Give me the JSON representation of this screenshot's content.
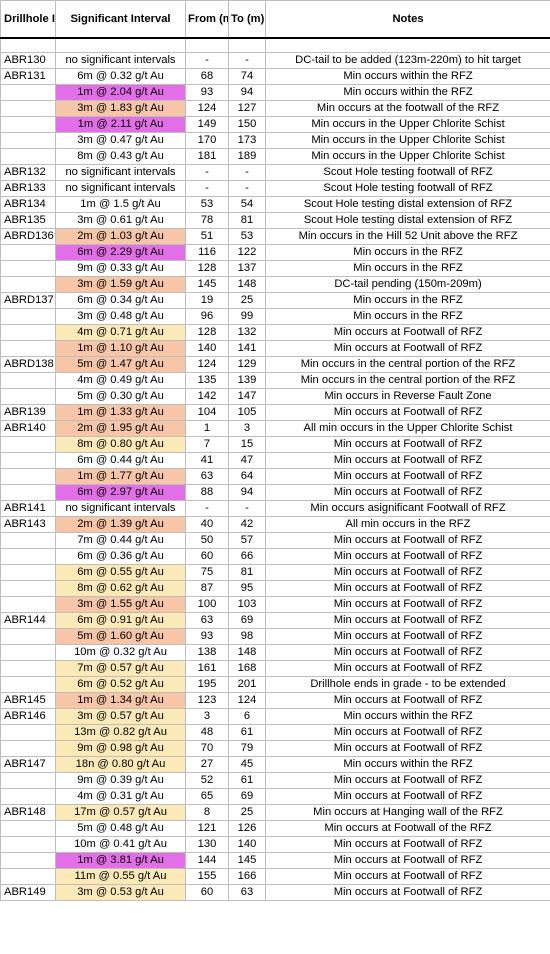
{
  "headers": {
    "drillhole": "Drillhole ID",
    "interval": "Significant Interval",
    "from": "From (m)",
    "to": "To (m)",
    "notes": "Notes"
  },
  "rows": [
    {
      "id": "ABR130",
      "interval": "no significant intervals",
      "from": "-",
      "to": "-",
      "notes": "DC-tail to be added (123m-220m) to hit target",
      "hl": ""
    },
    {
      "id": "ABR131",
      "interval": "6m @ 0.32 g/t Au",
      "from": "68",
      "to": "74",
      "notes": "Min occurs within the RFZ",
      "hl": ""
    },
    {
      "id": "",
      "interval": "1m @ 2.04 g/t Au",
      "from": "93",
      "to": "94",
      "notes": "Min occurs within the RFZ",
      "hl": "magenta"
    },
    {
      "id": "",
      "interval": "3m @ 1.83 g/t Au",
      "from": "124",
      "to": "127",
      "notes": "Min occurs at the footwall of the RFZ",
      "hl": "salmon"
    },
    {
      "id": "",
      "interval": "1m @ 2.11 g/t Au",
      "from": "149",
      "to": "150",
      "notes": "Min occurs in the Upper Chlorite Schist",
      "hl": "magenta"
    },
    {
      "id": "",
      "interval": "3m @ 0.47 g/t Au",
      "from": "170",
      "to": "173",
      "notes": "Min occurs in the Upper Chlorite Schist",
      "hl": ""
    },
    {
      "id": "",
      "interval": "8m @ 0.43 g/t Au",
      "from": "181",
      "to": "189",
      "notes": "Min occurs in the Upper Chlorite Schist",
      "hl": ""
    },
    {
      "id": "ABR132",
      "interval": "no significant intervals",
      "from": "-",
      "to": "-",
      "notes": "Scout Hole testing footwall of RFZ",
      "hl": ""
    },
    {
      "id": "ABR133",
      "interval": "no significant intervals",
      "from": "-",
      "to": "-",
      "notes": "Scout Hole testing footwall of RFZ",
      "hl": ""
    },
    {
      "id": "ABR134",
      "interval": "1m @ 1.5 g/t Au",
      "from": "53",
      "to": "54",
      "notes": "Scout Hole testing distal extension of RFZ",
      "hl": ""
    },
    {
      "id": "ABR135",
      "interval": "3m @ 0.61 g/t Au",
      "from": "78",
      "to": "81",
      "notes": "Scout Hole testing distal extension of RFZ",
      "hl": ""
    },
    {
      "id": "ABRD136",
      "interval": "2m @ 1.03 g/t Au",
      "from": "51",
      "to": "53",
      "notes": "Min occurs in the Hill 52 Unit above the RFZ",
      "hl": "salmon"
    },
    {
      "id": "",
      "interval": "6m @ 2.29 g/t Au",
      "from": "116",
      "to": "122",
      "notes": "Min occurs in the RFZ",
      "hl": "magenta"
    },
    {
      "id": "",
      "interval": "9m @ 0.33 g/t Au",
      "from": "128",
      "to": "137",
      "notes": "Min occurs in the RFZ",
      "hl": ""
    },
    {
      "id": "",
      "interval": "3m @ 1.59 g/t Au",
      "from": "145",
      "to": "148",
      "notes": "DC-tail pending (150m-209m)",
      "hl": "salmon"
    },
    {
      "id": "ABRD137",
      "interval": "6m @ 0.34 g/t Au",
      "from": "19",
      "to": "25",
      "notes": "Min occurs in the RFZ",
      "hl": ""
    },
    {
      "id": "",
      "interval": "3m @ 0.48 g/t Au",
      "from": "96",
      "to": "99",
      "notes": "Min occurs in the RFZ",
      "hl": ""
    },
    {
      "id": "",
      "interval": "4m @ 0.71 g/t Au",
      "from": "128",
      "to": "132",
      "notes": "Min occurs at Footwall of RFZ",
      "hl": "yellow"
    },
    {
      "id": "",
      "interval": "1m @ 1.10 g/t Au",
      "from": "140",
      "to": "141",
      "notes": "Min occurs at Footwall of RFZ",
      "hl": "salmon"
    },
    {
      "id": "ABRD138",
      "interval": "5m @ 1.47 g/t Au",
      "from": "124",
      "to": "129",
      "notes": "Min occurs in the central portion of the RFZ",
      "hl": "salmon"
    },
    {
      "id": "",
      "interval": "4m @ 0.49 g/t Au",
      "from": "135",
      "to": "139",
      "notes": "Min occurs in the central portion of the RFZ",
      "hl": ""
    },
    {
      "id": "",
      "interval": "5m @ 0.30 g/t Au",
      "from": "142",
      "to": "147",
      "notes": "Min occurs in Reverse Fault Zone",
      "hl": ""
    },
    {
      "id": "ABR139",
      "interval": "1m @ 1.33 g/t Au",
      "from": "104",
      "to": "105",
      "notes": "Min occurs at Footwall of RFZ",
      "hl": "salmon"
    },
    {
      "id": "ABR140",
      "interval": "2m @ 1.95 g/t Au",
      "from": "1",
      "to": "3",
      "notes": "All min occurs in the Upper Chlorite Schist",
      "hl": "salmon"
    },
    {
      "id": "",
      "interval": "8m @ 0.80 g/t Au",
      "from": "7",
      "to": "15",
      "notes": "Min occurs at Footwall of RFZ",
      "hl": "yellow"
    },
    {
      "id": "",
      "interval": "6m @ 0.44 g/t Au",
      "from": "41",
      "to": "47",
      "notes": "Min occurs at Footwall of RFZ",
      "hl": ""
    },
    {
      "id": "",
      "interval": "1m @ 1.77 g/t Au",
      "from": "63",
      "to": "64",
      "notes": "Min occurs at Footwall of RFZ",
      "hl": "salmon"
    },
    {
      "id": "",
      "interval": "6m @ 2.97 g/t Au",
      "from": "88",
      "to": "94",
      "notes": "Min occurs at Footwall of RFZ",
      "hl": "magenta"
    },
    {
      "id": "ABR141",
      "interval": "no significant intervals",
      "from": "-",
      "to": "-",
      "notes": "Min occurs asignificant Footwall of RFZ",
      "hl": ""
    },
    {
      "id": "ABR143",
      "interval": "2m @ 1.39 g/t Au",
      "from": "40",
      "to": "42",
      "notes": "All min occurs in the RFZ",
      "hl": "salmon"
    },
    {
      "id": "",
      "interval": "7m @ 0.44 g/t Au",
      "from": "50",
      "to": "57",
      "notes": "Min occurs at Footwall of RFZ",
      "hl": ""
    },
    {
      "id": "",
      "interval": "6m @ 0.36 g/t Au",
      "from": "60",
      "to": "66",
      "notes": "Min occurs at Footwall of RFZ",
      "hl": ""
    },
    {
      "id": "",
      "interval": "6m @ 0.55 g/t Au",
      "from": "75",
      "to": "81",
      "notes": "Min occurs at Footwall of RFZ",
      "hl": "yellow"
    },
    {
      "id": "",
      "interval": "8m @ 0.62 g/t Au",
      "from": "87",
      "to": "95",
      "notes": "Min occurs at Footwall of RFZ",
      "hl": "yellow"
    },
    {
      "id": "",
      "interval": "3m @ 1.55 g/t Au",
      "from": "100",
      "to": "103",
      "notes": "Min occurs at Footwall of RFZ",
      "hl": "salmon"
    },
    {
      "id": "ABR144",
      "interval": "6m @ 0.91 g/t Au",
      "from": "63",
      "to": "69",
      "notes": "Min occurs at Footwall of RFZ",
      "hl": "yellow"
    },
    {
      "id": "",
      "interval": "5m @ 1.60 g/t Au",
      "from": "93",
      "to": "98",
      "notes": "Min occurs at Footwall of RFZ",
      "hl": "salmon"
    },
    {
      "id": "",
      "interval": "10m @ 0.32 g/t Au",
      "from": "138",
      "to": "148",
      "notes": "Min occurs at Footwall of RFZ",
      "hl": ""
    },
    {
      "id": "",
      "interval": "7m @ 0.57 g/t Au",
      "from": "161",
      "to": "168",
      "notes": "Min occurs at Footwall of RFZ",
      "hl": "yellow"
    },
    {
      "id": "",
      "interval": "6m @ 0.52 g/t Au",
      "from": "195",
      "to": "201",
      "notes": "Drillhole ends in grade - to be extended",
      "hl": "yellow"
    },
    {
      "id": "ABR145",
      "interval": "1m @ 1.34 g/t Au",
      "from": "123",
      "to": "124",
      "notes": "Min occurs at Footwall of RFZ",
      "hl": "salmon"
    },
    {
      "id": "ABR146",
      "interval": "3m @ 0.57 g/t Au",
      "from": "3",
      "to": "6",
      "notes": "Min occurs within the RFZ",
      "hl": "yellow"
    },
    {
      "id": "",
      "interval": "13m @ 0.82 g/t Au",
      "from": "48",
      "to": "61",
      "notes": "Min occurs at Footwall of RFZ",
      "hl": "yellow"
    },
    {
      "id": "",
      "interval": "9m @ 0.98 g/t Au",
      "from": "70",
      "to": "79",
      "notes": "Min occurs at Footwall of RFZ",
      "hl": "yellow"
    },
    {
      "id": "ABR147",
      "interval": "18n @ 0.80 g/t Au",
      "from": "27",
      "to": "45",
      "notes": "Min occurs within the RFZ",
      "hl": "yellow"
    },
    {
      "id": "",
      "interval": "9m @ 0.39 g/t Au",
      "from": "52",
      "to": "61",
      "notes": "Min occurs at Footwall of RFZ",
      "hl": ""
    },
    {
      "id": "",
      "interval": "4m @ 0.31 g/t Au",
      "from": "65",
      "to": "69",
      "notes": "Min occurs at Footwall of RFZ",
      "hl": ""
    },
    {
      "id": "ABR148",
      "interval": "17m @ 0.57 g/t Au",
      "from": "8",
      "to": "25",
      "notes": "Min occurs at Hanging wall of the RFZ",
      "hl": "yellow"
    },
    {
      "id": "",
      "interval": "5m @ 0.48 g/t Au",
      "from": "121",
      "to": "126",
      "notes": "Min occurs at Footwall of the RFZ",
      "hl": ""
    },
    {
      "id": "",
      "interval": "10m @ 0.41 g/t Au",
      "from": "130",
      "to": "140",
      "notes": "Min occurs at Footwall of RFZ",
      "hl": ""
    },
    {
      "id": "",
      "interval": "1m @ 3.81 g/t Au",
      "from": "144",
      "to": "145",
      "notes": "Min occurs at Footwall of RFZ",
      "hl": "magenta"
    },
    {
      "id": "",
      "interval": "11m @ 0.55 g/t Au",
      "from": "155",
      "to": "166",
      "notes": "Min occurs at Footwall of RFZ",
      "hl": "yellow"
    },
    {
      "id": "ABR149",
      "interval": "3m @ 0.53 g/t Au",
      "from": "60",
      "to": "63",
      "notes": "Min occurs at Footwall of RFZ",
      "hl": "yellow"
    }
  ],
  "highlight_colors": {
    "magenta": "#e36fe8",
    "salmon": "#f7c5a8",
    "yellow": "#fce9b8"
  }
}
